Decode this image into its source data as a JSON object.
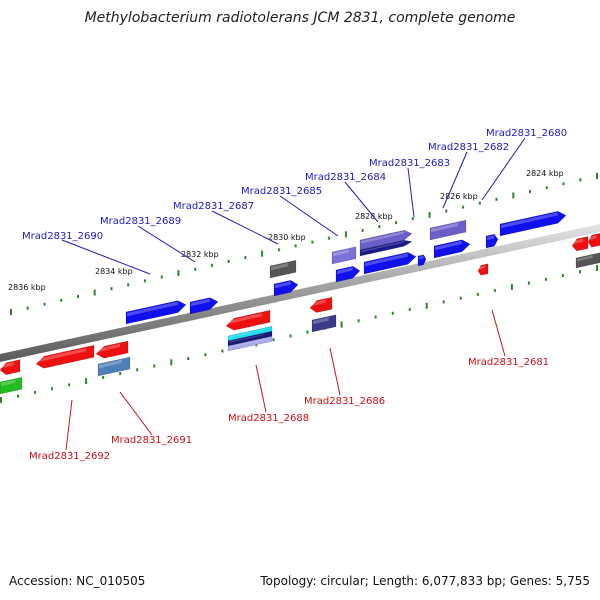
{
  "title": "Methylobacterium radiotolerans JCM 2831, complete genome",
  "footer": {
    "accession": "Accession: NC_010505",
    "summary": "Topology: circular; Length: 6,077,833 bp; Genes: 5,755"
  },
  "colors": {
    "label_top": "#1a1ac8",
    "label_bottom": "#cc1111",
    "backbone": "#888888",
    "tick": "#2a8a2a"
  },
  "kbp_labels": [
    "2836 kbp",
    "2834 kbp",
    "2832 kbp",
    "2830 kbp",
    "2828 kbp",
    "2826 kbp",
    "2824 kbp"
  ],
  "genes_top": [
    "Mrad2831_2690",
    "Mrad2831_2689",
    "Mrad2831_2687",
    "Mrad2831_2685",
    "Mrad2831_2684",
    "Mrad2831_2683",
    "Mrad2831_2682",
    "Mrad2831_2680"
  ],
  "genes_bottom": [
    "Mrad2831_2692",
    "Mrad2831_2691",
    "Mrad2831_2688",
    "Mrad2831_2686",
    "Mrad2831_2681"
  ]
}
